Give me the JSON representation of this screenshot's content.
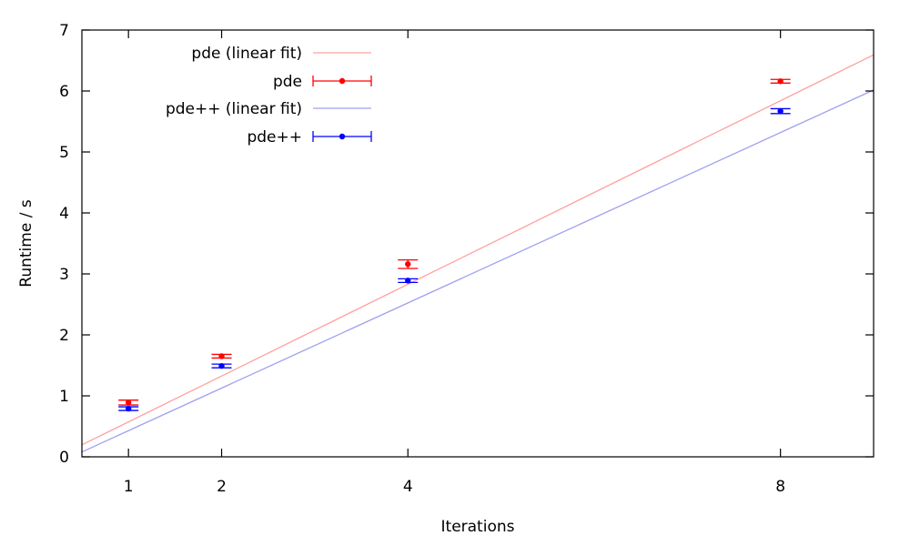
{
  "chart_data": {
    "type": "scatter",
    "xlabel": "Iterations",
    "ylabel": "Runtime / s",
    "xlim": [
      0.5,
      9.0
    ],
    "ylim": [
      0,
      7
    ],
    "xticks": [
      1,
      2,
      4,
      8
    ],
    "yticks": [
      0,
      1,
      2,
      3,
      4,
      5,
      6,
      7
    ],
    "grid": false,
    "legend_position": "top-left",
    "series": [
      {
        "name": "pde",
        "color": "#ff0000",
        "x": [
          1,
          2,
          4,
          8
        ],
        "y": [
          0.89,
          1.65,
          3.16,
          6.16
        ],
        "yerr": [
          0.04,
          0.03,
          0.07,
          0.03
        ],
        "fit_label": "pde (linear fit)",
        "fit_color": "#ffa0a0",
        "fit": {
          "slope": 0.7525,
          "intercept": -0.18
        }
      },
      {
        "name": "pde++",
        "color": "#0000ff",
        "x": [
          1,
          2,
          4,
          8
        ],
        "y": [
          0.79,
          1.49,
          2.89,
          5.67
        ],
        "yerr": [
          0.03,
          0.03,
          0.03,
          0.04
        ],
        "fit_label": "pde++ (linear fit)",
        "fit_color": "#a0a0f0",
        "fit": {
          "slope": 0.6985,
          "intercept": -0.27
        }
      }
    ]
  }
}
